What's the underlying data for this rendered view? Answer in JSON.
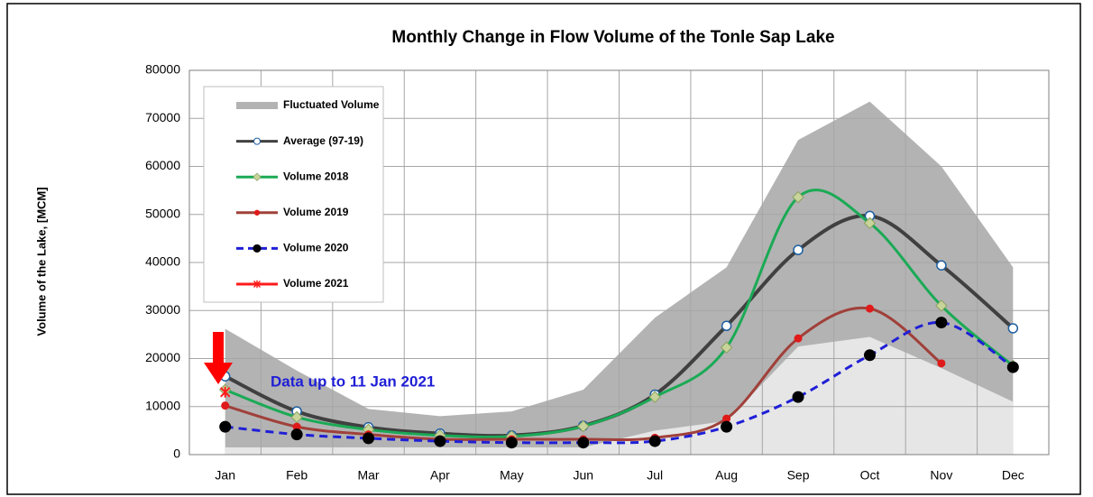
{
  "chart_data": {
    "type": "line",
    "title": "Monthly Change in Flow Volume of the Tonle Sap Lake",
    "y_label": "Volume of the Lake, [MCM]",
    "annotation": "Data up to 11 Jan 2021",
    "categories": [
      "Jan",
      "Feb",
      "Mar",
      "Apr",
      "May",
      "Jun",
      "Jul",
      "Aug",
      "Sep",
      "Oct",
      "Nov",
      "Dec"
    ],
    "ylim": [
      0,
      80000
    ],
    "yticks": [
      0,
      10000,
      20000,
      30000,
      40000,
      50000,
      60000,
      70000,
      80000
    ],
    "grid": true,
    "legend": "upper left",
    "band": {
      "name": "Fluctuated Volume",
      "color": "#b3b3b3",
      "lower_color": "#e6e6e6",
      "upper": [
        26200,
        17500,
        9500,
        8000,
        9000,
        13500,
        28500,
        39000,
        65500,
        73500,
        60000,
        39000
      ],
      "lower": [
        1500,
        1500,
        1500,
        1500,
        1500,
        1500,
        5000,
        7000,
        22500,
        24500,
        18000,
        11000
      ]
    },
    "series": [
      {
        "name": "Average (97-19)",
        "color": "#404040",
        "marker": "circle-open",
        "dash": false,
        "values": [
          16300,
          9000,
          5700,
          4400,
          4000,
          6000,
          12500,
          26800,
          42600,
          49700,
          39400,
          26300
        ]
      },
      {
        "name": "Volume 2018",
        "color": "#1aaa55",
        "marker": "diamond",
        "dash": false,
        "values": [
          13500,
          7800,
          5200,
          4000,
          3800,
          5900,
          12000,
          22300,
          53600,
          48200,
          31000,
          18500
        ]
      },
      {
        "name": "Volume 2019",
        "color": "#a0403a",
        "marker": "circle",
        "dash": false,
        "values": [
          10200,
          5800,
          4200,
          3200,
          3200,
          3200,
          3500,
          7500,
          24200,
          30400,
          19000,
          null
        ]
      },
      {
        "name": "Volume 2020",
        "color": "#1f1fd6",
        "marker": "circle-black",
        "dash": true,
        "values": [
          5800,
          4200,
          3400,
          2800,
          2500,
          2500,
          2800,
          5800,
          12000,
          20700,
          27500,
          18200
        ]
      },
      {
        "name": "Volume 2021",
        "color": "#ff1a1a",
        "marker": "cross",
        "dash": false,
        "values": [
          13000,
          null,
          null,
          null,
          null,
          null,
          null,
          null,
          null,
          null,
          null,
          null
        ]
      }
    ]
  }
}
